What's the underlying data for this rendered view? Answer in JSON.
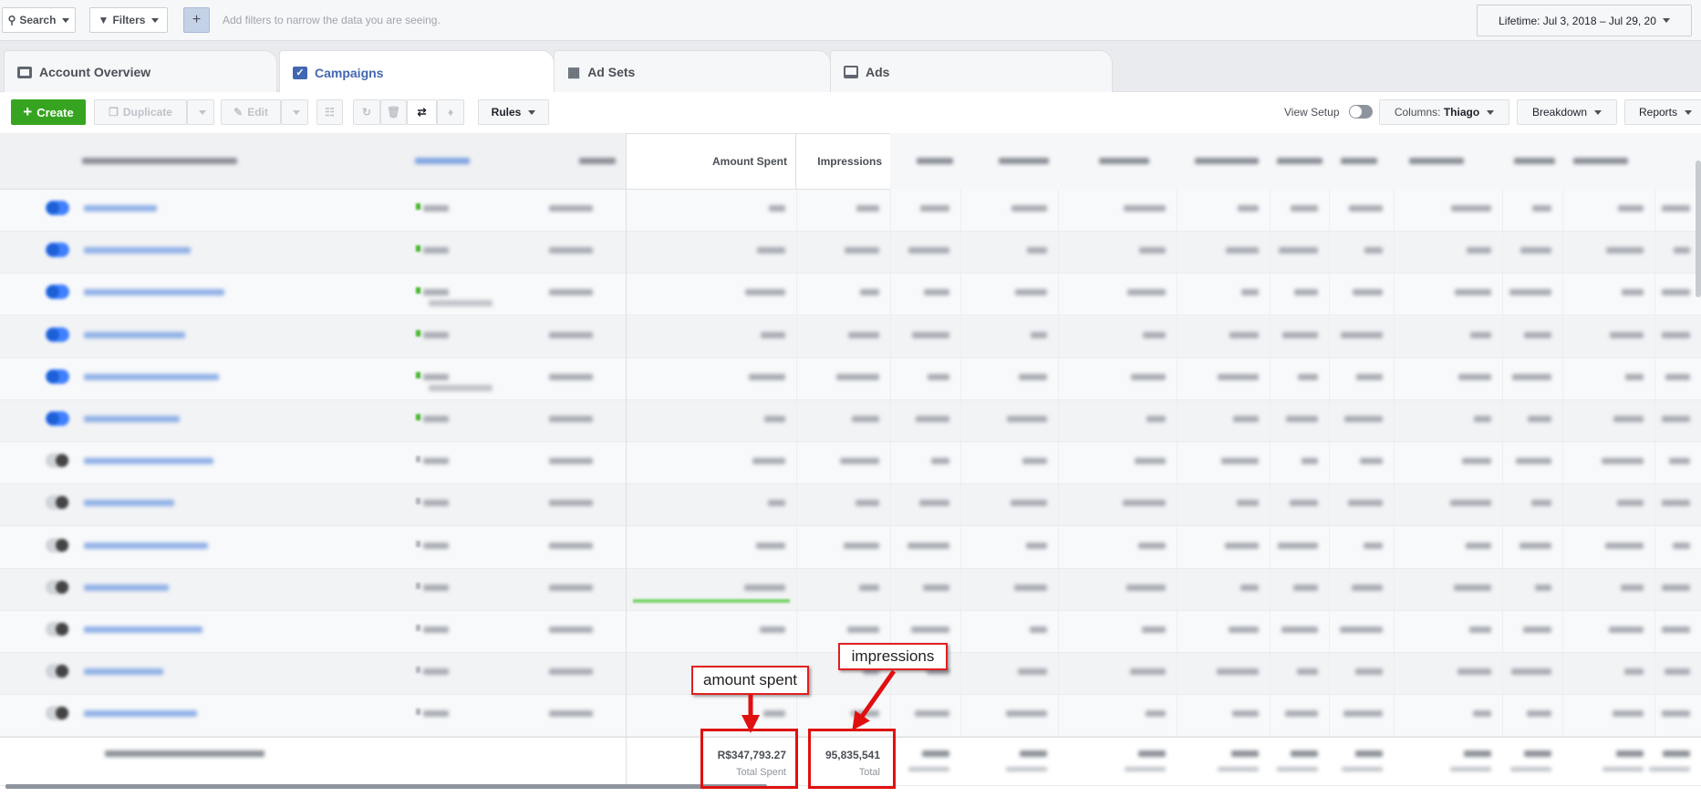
{
  "topbar": {
    "search_label": "Search",
    "filters_label": "Filters",
    "add_filter_label": "+",
    "hint": "Add filters to narrow the data you are seeing.",
    "date_range": "Lifetime: Jul 3, 2018 – Jul 29, 20"
  },
  "tabs": [
    {
      "label": "Account Overview",
      "icon": "account-overview-icon",
      "active": false
    },
    {
      "label": "Campaigns",
      "icon": "campaigns-folder-check-icon",
      "active": true
    },
    {
      "label": "Ad Sets",
      "icon": "grid-icon",
      "active": false
    },
    {
      "label": "Ads",
      "icon": "ad-icon",
      "active": false
    }
  ],
  "toolbar": {
    "create_label": "Create",
    "duplicate_label": "Duplicate",
    "edit_label": "Edit",
    "rules_label": "Rules",
    "view_setup_label": "View Setup",
    "columns_prefix": "Columns:",
    "columns_value": "Thiago",
    "breakdown_label": "Breakdown",
    "reports_label": "Reports"
  },
  "table": {
    "headers": {
      "amount_spent": "Amount Spent",
      "impressions": "Impressions"
    },
    "rows": [
      {
        "active": true,
        "delivery": "active",
        "subtext": false,
        "spend_progress": null
      },
      {
        "active": true,
        "delivery": "active",
        "subtext": false,
        "spend_progress": null
      },
      {
        "active": true,
        "delivery": "active",
        "subtext": true,
        "spend_progress": null
      },
      {
        "active": true,
        "delivery": "active",
        "subtext": false,
        "spend_progress": null
      },
      {
        "active": true,
        "delivery": "active",
        "subtext": true,
        "spend_progress": null
      },
      {
        "active": true,
        "delivery": "active",
        "subtext": false,
        "spend_progress": null
      },
      {
        "active": false,
        "delivery": "inactive",
        "subtext": false,
        "spend_progress": null
      },
      {
        "active": false,
        "delivery": "inactive",
        "subtext": false,
        "spend_progress": null
      },
      {
        "active": false,
        "delivery": "inactive",
        "subtext": false,
        "spend_progress": null
      },
      {
        "active": false,
        "delivery": "inactive",
        "subtext": false,
        "spend_progress": 1.0
      },
      {
        "active": false,
        "delivery": "inactive",
        "subtext": false,
        "spend_progress": null
      },
      {
        "active": false,
        "delivery": "inactive",
        "subtext": false,
        "spend_progress": null
      },
      {
        "active": false,
        "delivery": "inactive",
        "subtext": false,
        "spend_progress": null
      }
    ],
    "totals": {
      "amount_spent": "R$347,793.27",
      "amount_spent_caption": "Total Spent",
      "impressions": "95,835,541",
      "impressions_caption": "Total"
    }
  },
  "annotations": {
    "amount_spent": "amount spent",
    "impressions": "impressions"
  },
  "colors": {
    "create_green": "#36a420",
    "tab_active_blue": "#4267b2",
    "toggle_on": "#4080ff",
    "delivery_active": "#42b72a",
    "annotation_red": "#e01010"
  }
}
